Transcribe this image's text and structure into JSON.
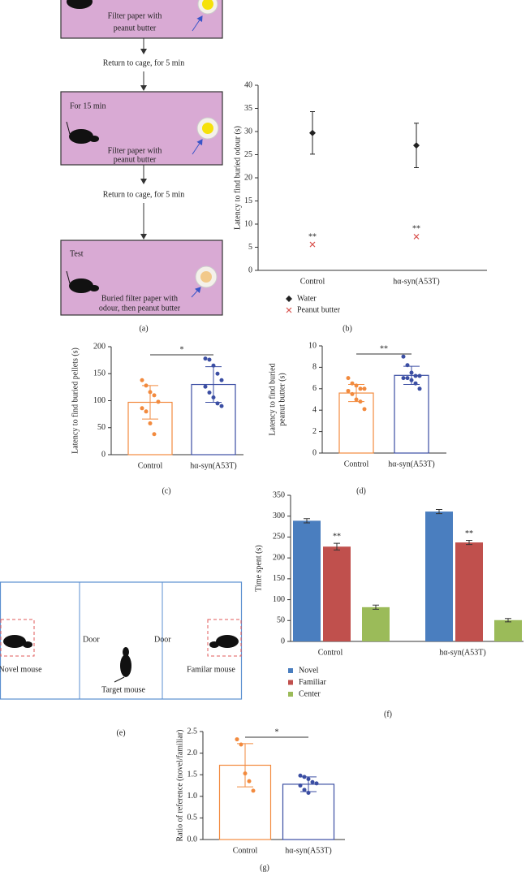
{
  "diagram_a": {
    "boxes": [
      {
        "lines": [
          "Filter paper with",
          "peanut butter"
        ]
      },
      {
        "heading": "For 15 min",
        "lines": [
          "Filter paper with",
          "peanut butter"
        ]
      },
      {
        "heading": "Test",
        "lines": [
          "Buried filter paper with",
          "odour, then peanut butter"
        ]
      }
    ],
    "steps": [
      "Return to cage, for 5 min",
      "Return to cage, for 5 min"
    ],
    "caption": "(a)"
  },
  "diagram_e": {
    "novel": "Novel mouse",
    "doors": [
      "Door",
      "Door"
    ],
    "familiar": "Familar mouse",
    "target": "Target mouse",
    "caption": "(e)"
  },
  "chart_data": [
    {
      "type": "errorbar",
      "ylabel": "Latency to find buried odour (s)",
      "categories": [
        "Control",
        "hα-syn(A53T)"
      ],
      "series": [
        {
          "name": "Water",
          "color": "#222222",
          "marker": "diamond",
          "values": [
            29.7,
            27
          ],
          "errors": [
            4.6,
            4.8
          ]
        },
        {
          "name": "Peanut butter",
          "color": "#d9534f",
          "marker": "x",
          "values": [
            5.6,
            7.3
          ],
          "annotations": [
            "**",
            "**"
          ]
        }
      ],
      "ylim": [
        0,
        40
      ],
      "yticks": [
        0,
        5,
        10,
        15,
        20,
        25,
        30,
        35,
        40
      ],
      "legend": "below",
      "caption": "(b)"
    },
    {
      "type": "bar",
      "ylabel": [
        "Latency to find buried pellets (s)"
      ],
      "categories": [
        "Control",
        "hα-syn(A53T)"
      ],
      "values": [
        97,
        130
      ],
      "errors": [
        31,
        33
      ],
      "points": [
        [
          138,
          128,
          116,
          110,
          98,
          86,
          80,
          58,
          38
        ],
        [
          178,
          176,
          165,
          150,
          138,
          126,
          115,
          106,
          95,
          90
        ]
      ],
      "colors": [
        "#f28a3e",
        "#3b4ea3"
      ],
      "significance": "*",
      "ylim": [
        0,
        200
      ],
      "yticks": [
        0,
        50,
        100,
        150,
        200
      ],
      "caption": "(c)"
    },
    {
      "type": "bar",
      "ylabel": [
        "Latency to find buried",
        "peanut butter (s)"
      ],
      "categories": [
        "Control",
        "hα-syn(A53T)"
      ],
      "values": [
        5.6,
        7.25
      ],
      "errors": [
        0.8,
        0.85
      ],
      "points": [
        [
          7.0,
          6.5,
          6.3,
          6.0,
          6.0,
          5.8,
          5.5,
          5.0,
          4.8,
          4.1
        ],
        [
          9.0,
          8.2,
          7.5,
          7.2,
          7.2,
          7.0,
          7.0,
          6.8,
          6.5,
          6.0
        ]
      ],
      "colors": [
        "#f28a3e",
        "#3b4ea3"
      ],
      "significance": "**",
      "ylim": [
        0,
        10
      ],
      "yticks": [
        0,
        2,
        4,
        6,
        8,
        10
      ],
      "caption": "(d)"
    },
    {
      "type": "grouped_bar",
      "ylabel": "Time spent (s)",
      "categories": [
        "Control",
        "hα-syn(A53T)"
      ],
      "series": [
        {
          "name": "Novel",
          "color": "#4a7ebf",
          "values": [
            289,
            311
          ],
          "errors": [
            5,
            5
          ]
        },
        {
          "name": "Familiar",
          "color": "#c0504d",
          "values": [
            227,
            237
          ],
          "errors": [
            8,
            5
          ],
          "annotations": [
            "**",
            "**"
          ]
        },
        {
          "name": "Center",
          "color": "#9bbb59",
          "values": [
            82,
            51
          ],
          "errors": [
            5,
            4
          ]
        }
      ],
      "ylim": [
        0,
        350
      ],
      "yticks": [
        0,
        50,
        100,
        150,
        200,
        250,
        300,
        350
      ],
      "legend": "below",
      "caption": "(f)"
    },
    {
      "type": "bar",
      "ylabel": [
        "Ratio of reference (novel/familiar)"
      ],
      "categories": [
        "Control",
        "hα-syn(A53T)"
      ],
      "values": [
        1.72,
        1.28
      ],
      "errors": [
        0.5,
        0.17
      ],
      "points": [
        [
          2.32,
          2.2,
          1.53,
          1.35,
          1.13
        ],
        [
          1.48,
          1.45,
          1.4,
          1.33,
          1.3,
          1.25,
          1.15,
          1.08
        ]
      ],
      "colors": [
        "#f28a3e",
        "#3b4ea3"
      ],
      "significance": "*",
      "ylim": [
        0,
        2.5
      ],
      "yticks": [
        {
          "value": 0,
          "label": "0.0"
        },
        0.5,
        {
          "value": 1,
          "label": "1.0"
        },
        1.5,
        {
          "value": 2,
          "label": "2.0"
        },
        2.5
      ],
      "caption": "(g)"
    }
  ]
}
